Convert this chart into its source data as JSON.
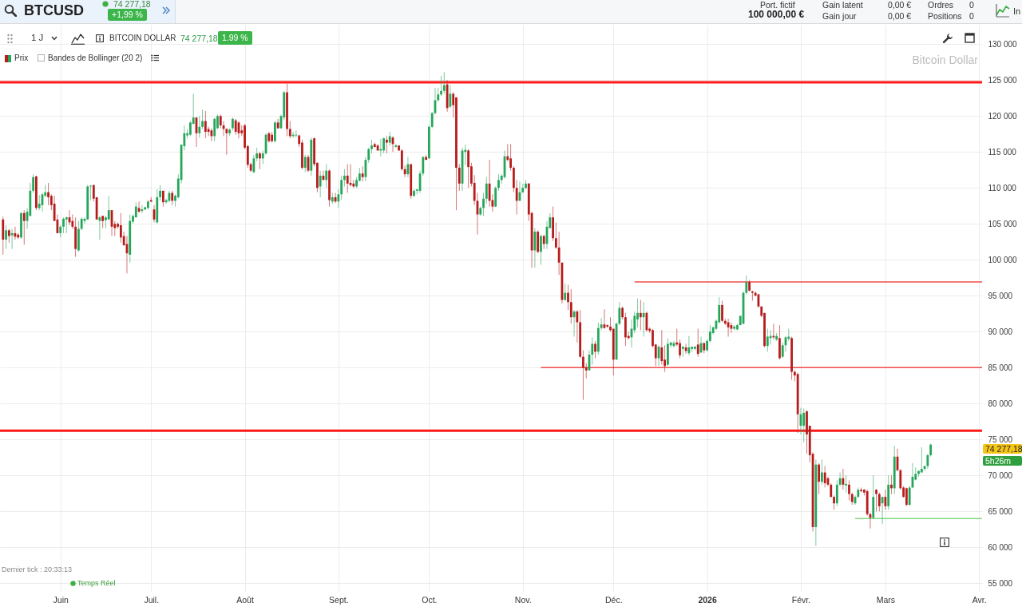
{
  "chart_data": {
    "type": "candlestick",
    "title": "BTCUSD",
    "x": [
      "2025-05-13",
      "2025-05-14",
      "2025-05-15",
      "2025-05-16",
      "2025-05-17",
      "2025-05-18",
      "2025-05-19",
      "2025-05-20",
      "2025-05-21",
      "2025-05-22",
      "2025-05-23",
      "2025-05-24",
      "2025-05-25",
      "2025-05-26",
      "2025-05-27",
      "2025-05-28",
      "2025-05-29",
      "2025-05-30",
      "2025-05-31",
      "2025-06-01",
      "2025-06-02",
      "2025-06-03",
      "2025-06-04",
      "2025-06-05",
      "2025-06-06",
      "2025-06-07",
      "2025-06-08",
      "2025-06-09",
      "2025-06-10",
      "2025-06-11",
      "2025-06-12",
      "2025-06-13",
      "2025-06-14",
      "2025-06-15",
      "2025-06-16",
      "2025-06-17",
      "2025-06-18",
      "2025-06-19",
      "2025-06-20",
      "2025-06-21",
      "2025-06-22",
      "2025-06-23",
      "2025-06-24",
      "2025-06-25",
      "2025-06-26",
      "2025-06-27",
      "2025-06-28",
      "2025-06-29",
      "2025-06-30",
      "2025-07-01",
      "2025-07-02",
      "2025-07-03",
      "2025-07-04",
      "2025-07-05",
      "2025-07-06",
      "2025-07-07",
      "2025-07-08",
      "2025-07-09",
      "2025-07-10",
      "2025-07-11",
      "2025-07-12",
      "2025-07-13",
      "2025-07-14",
      "2025-07-15",
      "2025-07-16",
      "2025-07-17",
      "2025-07-18",
      "2025-07-19",
      "2025-07-20",
      "2025-07-21",
      "2025-07-22",
      "2025-07-23",
      "2025-07-24",
      "2025-07-25",
      "2025-07-26",
      "2025-07-27",
      "2025-07-28",
      "2025-07-29",
      "2025-07-30",
      "2025-07-31",
      "2025-08-01",
      "2025-08-02",
      "2025-08-03",
      "2025-08-04",
      "2025-08-05",
      "2025-08-06",
      "2025-08-07",
      "2025-08-08",
      "2025-08-09",
      "2025-08-10",
      "2025-08-11",
      "2025-08-12",
      "2025-08-13",
      "2025-08-14",
      "2025-08-15",
      "2025-08-16",
      "2025-08-17",
      "2025-08-18",
      "2025-08-19",
      "2025-08-20",
      "2025-08-21",
      "2025-08-22",
      "2025-08-23",
      "2025-08-24",
      "2025-08-25",
      "2025-08-26",
      "2025-08-27",
      "2025-08-28",
      "2025-08-29",
      "2025-08-30",
      "2025-08-31",
      "2025-09-01",
      "2025-09-02",
      "2025-09-03",
      "2025-09-04",
      "2025-09-05",
      "2025-09-06",
      "2025-09-07",
      "2025-09-08",
      "2025-09-09",
      "2025-09-10",
      "2025-09-11",
      "2025-09-12",
      "2025-09-13",
      "2025-09-14",
      "2025-09-15",
      "2025-09-16",
      "2025-09-17",
      "2025-09-18",
      "2025-09-19",
      "2025-09-20",
      "2025-09-21",
      "2025-09-22",
      "2025-09-23",
      "2025-09-24",
      "2025-09-25",
      "2025-09-26",
      "2025-09-27",
      "2025-09-28",
      "2025-09-29",
      "2025-09-30",
      "2025-10-01",
      "2025-10-02",
      "2025-10-03",
      "2025-10-04",
      "2025-10-05",
      "2025-10-06",
      "2025-10-07",
      "2025-10-08",
      "2025-10-09",
      "2025-10-10",
      "2025-10-11",
      "2025-10-12",
      "2025-10-13",
      "2025-10-14",
      "2025-10-15",
      "2025-10-16",
      "2025-10-17",
      "2025-10-18",
      "2025-10-19",
      "2025-10-20",
      "2025-10-21",
      "2025-10-22",
      "2025-10-23",
      "2025-10-24",
      "2025-10-25",
      "2025-10-26",
      "2025-10-27",
      "2025-10-28",
      "2025-10-29",
      "2025-10-30",
      "2025-10-31",
      "2025-11-01",
      "2025-11-02",
      "2025-11-03",
      "2025-11-04",
      "2025-11-05",
      "2025-11-06",
      "2025-11-07",
      "2025-11-08",
      "2025-11-09",
      "2025-11-10",
      "2025-11-11",
      "2025-11-12",
      "2025-11-13",
      "2025-11-14",
      "2025-11-15",
      "2025-11-16",
      "2025-11-17",
      "2025-11-18",
      "2025-11-19",
      "2025-11-20",
      "2025-11-21",
      "2025-11-22",
      "2025-11-23",
      "2025-11-24",
      "2025-11-25",
      "2025-11-26",
      "2025-11-27",
      "2025-11-28",
      "2025-11-29",
      "2025-11-30",
      "2025-12-01",
      "2025-12-02",
      "2025-12-03",
      "2025-12-04",
      "2025-12-05",
      "2025-12-06",
      "2025-12-07",
      "2025-12-08",
      "2025-12-09",
      "2025-12-10",
      "2025-12-11",
      "2025-12-12",
      "2025-12-13",
      "2025-12-14",
      "2025-12-15",
      "2025-12-16",
      "2025-12-17",
      "2025-12-18",
      "2025-12-19",
      "2025-12-20",
      "2025-12-21",
      "2025-12-22",
      "2025-12-23",
      "2025-12-24",
      "2025-12-25",
      "2025-12-26",
      "2025-12-27",
      "2025-12-28",
      "2025-12-29",
      "2025-12-30",
      "2025-12-31",
      "2026-01-01",
      "2026-01-02",
      "2026-01-03",
      "2026-01-04",
      "2026-01-05",
      "2026-01-06",
      "2026-01-07",
      "2026-01-08",
      "2026-01-09",
      "2026-01-10",
      "2026-01-11",
      "2026-01-12",
      "2026-01-13",
      "2026-01-14",
      "2026-01-15",
      "2026-01-16",
      "2026-01-17",
      "2026-01-18",
      "2026-01-19",
      "2026-01-20",
      "2026-01-21",
      "2026-01-22",
      "2026-01-23",
      "2026-01-24",
      "2026-01-25",
      "2026-01-26",
      "2026-01-27",
      "2026-01-28",
      "2026-01-29",
      "2026-01-30",
      "2026-01-31",
      "2026-02-01",
      "2026-02-02",
      "2026-02-03",
      "2026-02-04",
      "2026-02-05",
      "2026-02-06",
      "2026-02-07",
      "2026-02-08",
      "2026-02-09",
      "2026-02-10",
      "2026-02-11",
      "2026-02-12",
      "2026-02-13",
      "2026-02-14",
      "2026-02-15",
      "2026-02-16",
      "2026-02-17",
      "2026-02-18",
      "2026-02-19",
      "2026-02-20",
      "2026-02-21",
      "2026-02-22",
      "2026-02-23",
      "2026-02-24",
      "2026-02-25",
      "2026-02-26",
      "2026-02-27",
      "2026-02-28",
      "2026-03-01",
      "2026-03-02",
      "2026-03-03",
      "2026-03-04",
      "2026-03-05",
      "2026-03-06",
      "2026-03-07",
      "2026-03-08",
      "2026-03-09",
      "2026-03-10",
      "2026-03-11",
      "2026-03-12",
      "2026-03-13",
      "2026-03-14",
      "2026-03-15",
      "2026-03-16"
    ],
    "ohlc": [
      [
        105600,
        106000,
        100700,
        102800
      ],
      [
        102800,
        104800,
        101500,
        104100
      ],
      [
        104100,
        104300,
        102400,
        103300
      ],
      [
        103400,
        104300,
        101500,
        103700
      ],
      [
        103700,
        104600,
        102800,
        103200
      ],
      [
        103500,
        103700,
        102900,
        103100
      ],
      [
        103100,
        106600,
        102900,
        106500
      ],
      [
        106500,
        106900,
        102100,
        105400
      ],
      [
        105400,
        107200,
        104300,
        106700
      ],
      [
        106100,
        110700,
        106100,
        109600
      ],
      [
        109600,
        111900,
        109300,
        111500
      ],
      [
        111600,
        111700,
        106900,
        107200
      ],
      [
        107200,
        109000,
        106900,
        107800
      ],
      [
        107600,
        109300,
        106700,
        109100
      ],
      [
        108900,
        110400,
        108700,
        109400
      ],
      [
        109400,
        110700,
        107600,
        108700
      ],
      [
        108900,
        109100,
        106900,
        107600
      ],
      [
        107800,
        108900,
        105400,
        105400
      ],
      [
        105600,
        106300,
        103700,
        103700
      ],
      [
        103700,
        104800,
        103100,
        104600
      ],
      [
        104600,
        105900,
        103700,
        105700
      ],
      [
        105600,
        106000,
        103700,
        105900
      ],
      [
        105900,
        106900,
        104800,
        105200
      ],
      [
        105400,
        106300,
        104300,
        104600
      ],
      [
        104600,
        105900,
        100400,
        101500
      ],
      [
        101300,
        105400,
        101100,
        104300
      ],
      [
        104300,
        105900,
        104100,
        105700
      ],
      [
        105400,
        105900,
        105000,
        105700
      ],
      [
        105600,
        110400,
        105600,
        110200
      ],
      [
        110200,
        110400,
        108300,
        110300
      ],
      [
        110400,
        110400,
        108100,
        108500
      ],
      [
        108700,
        108700,
        105600,
        105600
      ],
      [
        105400,
        106100,
        102800,
        105900
      ],
      [
        106100,
        106100,
        104400,
        105400
      ],
      [
        105500,
        106100,
        104400,
        105900
      ],
      [
        105600,
        108900,
        105600,
        106900
      ],
      [
        106900,
        106900,
        103300,
        104600
      ],
      [
        105000,
        105400,
        103300,
        104400
      ],
      [
        105000,
        105200,
        104300,
        104600
      ],
      [
        104800,
        106500,
        102400,
        103100
      ],
      [
        103300,
        103900,
        102000,
        102000
      ],
      [
        102200,
        103300,
        98100,
        100900
      ],
      [
        100700,
        106300,
        99600,
        105400
      ],
      [
        105300,
        106300,
        105000,
        106100
      ],
      [
        105900,
        108000,
        105900,
        107400
      ],
      [
        107200,
        108100,
        106500,
        106700
      ],
      [
        106800,
        107600,
        106500,
        107000
      ],
      [
        107000,
        107400,
        106900,
        107300
      ],
      [
        107200,
        108300,
        107000,
        108100
      ],
      [
        108300,
        108700,
        108000,
        108100
      ],
      [
        107000,
        107600,
        105200,
        105600
      ],
      [
        105200,
        109800,
        105000,
        108700
      ],
      [
        108700,
        110400,
        108200,
        109600
      ],
      [
        109600,
        109600,
        107400,
        108000
      ],
      [
        108000,
        108500,
        107800,
        108300
      ],
      [
        108200,
        109600,
        108000,
        109300
      ],
      [
        109300,
        109600,
        107600,
        108200
      ],
      [
        108200,
        109100,
        107400,
        108900
      ],
      [
        108700,
        111900,
        108500,
        111300
      ],
      [
        111100,
        116100,
        110600,
        116000
      ],
      [
        115800,
        118700,
        115200,
        117600
      ],
      [
        117300,
        118200,
        116900,
        117600
      ],
      [
        117400,
        119300,
        117200,
        119100
      ],
      [
        118900,
        123100,
        118900,
        119800
      ],
      [
        119800,
        119800,
        115700,
        117600
      ],
      [
        117600,
        120000,
        117000,
        118500
      ],
      [
        118500,
        120900,
        118200,
        119300
      ],
      [
        119300,
        120700,
        116900,
        117800
      ],
      [
        118200,
        118500,
        117200,
        117800
      ],
      [
        118000,
        118300,
        116500,
        117200
      ],
      [
        117200,
        119800,
        116500,
        119600
      ],
      [
        118300,
        120200,
        118200,
        120000
      ],
      [
        120000,
        120200,
        118300,
        118700
      ],
      [
        118700,
        119300,
        117200,
        118200
      ],
      [
        118200,
        118300,
        114600,
        117600
      ],
      [
        117600,
        118300,
        117200,
        118100
      ],
      [
        118300,
        119800,
        118000,
        119600
      ],
      [
        119400,
        119600,
        117400,
        117800
      ],
      [
        119100,
        119300,
        116900,
        117600
      ],
      [
        118000,
        118700,
        117200,
        117600
      ],
      [
        118700,
        118900,
        115400,
        115600
      ],
      [
        115800,
        116000,
        112800,
        113200
      ],
      [
        113300,
        113500,
        112200,
        112400
      ],
      [
        112200,
        114600,
        112000,
        114100
      ],
      [
        114100,
        115600,
        113700,
        114800
      ],
      [
        114800,
        115000,
        112600,
        114100
      ],
      [
        114100,
        115200,
        113300,
        114800
      ],
      [
        114800,
        117600,
        114600,
        117400
      ],
      [
        117600,
        117800,
        116300,
        116500
      ],
      [
        117400,
        117800,
        116300,
        116500
      ],
      [
        116500,
        119300,
        116300,
        119100
      ],
      [
        119100,
        119600,
        118200,
        118300
      ],
      [
        118300,
        120200,
        118200,
        120000
      ],
      [
        119800,
        123500,
        119400,
        123300
      ],
      [
        123300,
        124500,
        117200,
        118200
      ],
      [
        118200,
        119300,
        116900,
        117200
      ],
      [
        117200,
        117800,
        117000,
        117400
      ],
      [
        117300,
        118000,
        117000,
        117400
      ],
      [
        117300,
        117400,
        115700,
        116100
      ],
      [
        116300,
        116700,
        112600,
        112800
      ],
      [
        112800,
        114600,
        112200,
        114300
      ],
      [
        114300,
        114600,
        112200,
        112400
      ],
      [
        112400,
        117000,
        111700,
        116700
      ],
      [
        116900,
        117000,
        113000,
        113300
      ],
      [
        113500,
        113500,
        109400,
        110000
      ],
      [
        110200,
        112400,
        108700,
        111700
      ],
      [
        111700,
        112400,
        111100,
        111100
      ],
      [
        111100,
        113300,
        110000,
        112400
      ],
      [
        112400,
        112600,
        107400,
        108300
      ],
      [
        108100,
        109300,
        107800,
        108700
      ],
      [
        108700,
        109300,
        107900,
        108100
      ],
      [
        108100,
        109800,
        107200,
        109100
      ],
      [
        109100,
        111700,
        108300,
        111100
      ],
      [
        111100,
        112600,
        110200,
        111700
      ],
      [
        111700,
        113300,
        109300,
        110600
      ],
      [
        110700,
        113300,
        110200,
        110400
      ],
      [
        110600,
        111100,
        110000,
        110200
      ],
      [
        110200,
        111500,
        110000,
        111100
      ],
      [
        111000,
        112800,
        110900,
        112000
      ],
      [
        112000,
        113000,
        110900,
        111500
      ],
      [
        111500,
        114300,
        110900,
        113900
      ],
      [
        113900,
        115600,
        113500,
        115400
      ],
      [
        115400,
        116700,
        114800,
        115900
      ],
      [
        116100,
        116300,
        115600,
        115700
      ],
      [
        115900,
        116100,
        115200,
        115200
      ],
      [
        115200,
        116800,
        114400,
        115400
      ],
      [
        115200,
        117000,
        114800,
        116900
      ],
      [
        116700,
        117200,
        114800,
        116300
      ],
      [
        116300,
        117800,
        115900,
        117200
      ],
      [
        117000,
        117200,
        115000,
        116100
      ],
      [
        115700,
        116100,
        115600,
        115900
      ],
      [
        115900,
        115900,
        115200,
        115200
      ],
      [
        115200,
        115400,
        112400,
        112600
      ],
      [
        112600,
        113100,
        111500,
        111900
      ],
      [
        111900,
        114300,
        111500,
        113300
      ],
      [
        113300,
        113300,
        108500,
        108900
      ],
      [
        108900,
        109800,
        108700,
        109600
      ],
      [
        109600,
        109800,
        109100,
        109800
      ],
      [
        109600,
        112400,
        109300,
        112000
      ],
      [
        112000,
        114400,
        111700,
        114300
      ],
      [
        114300,
        114600,
        113900,
        113900
      ],
      [
        114100,
        118700,
        114100,
        118500
      ],
      [
        118500,
        120600,
        118300,
        120400
      ],
      [
        120400,
        123900,
        120200,
        122200
      ],
      [
        122200,
        123900,
        122000,
        123000
      ],
      [
        123000,
        125600,
        122800,
        123500
      ],
      [
        123500,
        126100,
        123100,
        124300
      ],
      [
        124400,
        125000,
        120600,
        121100
      ],
      [
        121300,
        124300,
        121100,
        123100
      ],
      [
        123100,
        123300,
        119800,
        121500
      ],
      [
        122600,
        122600,
        106900,
        112800
      ],
      [
        112800,
        113300,
        109600,
        110600
      ],
      [
        110600,
        115600,
        109600,
        115200
      ],
      [
        115000,
        116000,
        113200,
        115300
      ],
      [
        115200,
        115400,
        110000,
        112900
      ],
      [
        113000,
        113500,
        110200,
        110600
      ],
      [
        110700,
        111800,
        107600,
        108200
      ],
      [
        108200,
        109300,
        103500,
        106300
      ],
      [
        106300,
        107400,
        106100,
        107200
      ],
      [
        107200,
        109300,
        106100,
        108500
      ],
      [
        108500,
        111500,
        107800,
        110600
      ],
      [
        110600,
        113900,
        107400,
        108200
      ],
      [
        108300,
        109100,
        106700,
        107400
      ],
      [
        107400,
        110200,
        107400,
        110000
      ],
      [
        110000,
        111900,
        109600,
        111100
      ],
      [
        111100,
        111900,
        110600,
        111700
      ],
      [
        111500,
        115200,
        111300,
        114400
      ],
      [
        114400,
        116100,
        113700,
        113900
      ],
      [
        114100,
        116100,
        112400,
        112800
      ],
      [
        112800,
        113000,
        109400,
        110000
      ],
      [
        110000,
        111100,
        106300,
        108200
      ],
      [
        108200,
        110900,
        108200,
        109400
      ],
      [
        109400,
        110600,
        109300,
        110000
      ],
      [
        110000,
        111100,
        109800,
        110600
      ],
      [
        110600,
        110700,
        105400,
        106300
      ],
      [
        106500,
        106700,
        98900,
        101300
      ],
      [
        101300,
        104400,
        98900,
        103900
      ],
      [
        103900,
        104100,
        100900,
        101100
      ],
      [
        101100,
        103500,
        99300,
        103300
      ],
      [
        103300,
        103500,
        101500,
        102200
      ],
      [
        102200,
        105400,
        101500,
        104600
      ],
      [
        104400,
        106500,
        104400,
        105900
      ],
      [
        105900,
        107400,
        102600,
        103000
      ],
      [
        103000,
        105200,
        101500,
        101700
      ],
      [
        101700,
        103900,
        97900,
        99600
      ],
      [
        99600,
        99600,
        93900,
        94400
      ],
      [
        94400,
        96700,
        94300,
        95400
      ],
      [
        95400,
        96500,
        93000,
        94100
      ],
      [
        94100,
        95900,
        91100,
        92000
      ],
      [
        92000,
        93000,
        89300,
        92800
      ],
      [
        92800,
        93000,
        88500,
        91300
      ],
      [
        91300,
        93000,
        86300,
        86500
      ],
      [
        86500,
        87400,
        80500,
        85000
      ],
      [
        85000,
        85600,
        83500,
        84600
      ],
      [
        84600,
        87400,
        84600,
        86800
      ],
      [
        86800,
        89200,
        85400,
        88300
      ],
      [
        88300,
        88700,
        86300,
        87200
      ],
      [
        87200,
        91300,
        86800,
        90500
      ],
      [
        90500,
        91900,
        90200,
        91000
      ],
      [
        91000,
        93100,
        90400,
        90500
      ],
      [
        90900,
        91000,
        90500,
        90700
      ],
      [
        90700,
        92000,
        90000,
        90200
      ],
      [
        90400,
        90400,
        83900,
        86100
      ],
      [
        86100,
        91300,
        86100,
        91100
      ],
      [
        91100,
        94100,
        90900,
        93300
      ],
      [
        93300,
        93500,
        91700,
        92000
      ],
      [
        92000,
        92600,
        88000,
        89200
      ],
      [
        89400,
        90000,
        88900,
        89100
      ],
      [
        89200,
        91700,
        87800,
        90400
      ],
      [
        90200,
        92800,
        89800,
        92200
      ],
      [
        91700,
        94600,
        90600,
        92600
      ],
      [
        92600,
        94400,
        90200,
        92000
      ],
      [
        92000,
        94100,
        89300,
        92600
      ],
      [
        92600,
        92800,
        90000,
        90200
      ],
      [
        90400,
        90600,
        89800,
        90100
      ],
      [
        90200,
        90400,
        87800,
        88000
      ],
      [
        88200,
        88300,
        85200,
        86300
      ],
      [
        86300,
        88100,
        85200,
        87900
      ],
      [
        87800,
        90200,
        85400,
        85900
      ],
      [
        86100,
        88100,
        84400,
        85200
      ],
      [
        85400,
        89100,
        85200,
        88300
      ],
      [
        88100,
        88500,
        87800,
        88500
      ],
      [
        88000,
        88700,
        87800,
        88400
      ],
      [
        88500,
        90400,
        88000,
        88200
      ],
      [
        88400,
        88900,
        86300,
        86700
      ],
      [
        87600,
        88000,
        86500,
        87900
      ],
      [
        87800,
        88300,
        86900,
        87300
      ],
      [
        87000,
        89400,
        86700,
        87800
      ],
      [
        87600,
        87900,
        87200,
        87900
      ],
      [
        87600,
        88000,
        87400,
        87900
      ],
      [
        88200,
        90400,
        86500,
        86900
      ],
      [
        87100,
        89300,
        87000,
        88400
      ],
      [
        88400,
        88500,
        87000,
        87400
      ],
      [
        87400,
        88900,
        87200,
        88700
      ],
      [
        88700,
        90900,
        88500,
        90000
      ],
      [
        89800,
        90700,
        89600,
        90600
      ],
      [
        90400,
        91700,
        90200,
        91500
      ],
      [
        91300,
        94800,
        91100,
        93700
      ],
      [
        93700,
        94300,
        91300,
        91500
      ],
      [
        91500,
        91800,
        90900,
        91100
      ],
      [
        91300,
        91800,
        89300,
        90600
      ],
      [
        90900,
        91300,
        89800,
        90400
      ],
      [
        90400,
        90900,
        90200,
        90700
      ],
      [
        90300,
        91100,
        90200,
        90900
      ],
      [
        90900,
        92200,
        90900,
        92200
      ],
      [
        91100,
        95600,
        91000,
        95400
      ],
      [
        95400,
        97800,
        95200,
        96900
      ],
      [
        96900,
        97200,
        95600,
        95700
      ],
      [
        95600,
        95700,
        94300,
        95400
      ],
      [
        95400,
        95600,
        94900,
        95000
      ],
      [
        95200,
        95200,
        93300,
        93500
      ],
      [
        93500,
        93500,
        92000,
        92200
      ],
      [
        92600,
        92600,
        87800,
        88000
      ],
      [
        88000,
        90400,
        87200,
        89300
      ],
      [
        89100,
        90200,
        88200,
        89400
      ],
      [
        89400,
        91100,
        88900,
        89200
      ],
      [
        88900,
        89800,
        88700,
        89400
      ],
      [
        89100,
        90900,
        86100,
        86300
      ],
      [
        86500,
        88500,
        86300,
        88100
      ],
      [
        88100,
        89400,
        87200,
        89200
      ],
      [
        89000,
        90400,
        88700,
        89300
      ],
      [
        89100,
        89300,
        83300,
        84400
      ],
      [
        84400,
        84600,
        83100,
        83900
      ],
      [
        84100,
        84300,
        75900,
        78500
      ],
      [
        76900,
        79400,
        75700,
        78500
      ],
      [
        76900,
        79300,
        74600,
        78700
      ],
      [
        78900,
        79100,
        73000,
        75700
      ],
      [
        76900,
        76900,
        71800,
        72800
      ],
      [
        73000,
        73200,
        62200,
        62800
      ],
      [
        62800,
        72200,
        60200,
        71500
      ],
      [
        71500,
        71700,
        67400,
        69100
      ],
      [
        69100,
        72200,
        68700,
        70400
      ],
      [
        70400,
        71300,
        68300,
        68900
      ],
      [
        69600,
        69800,
        68500,
        68700
      ],
      [
        68700,
        68900,
        66900,
        67000
      ],
      [
        67000,
        67200,
        65200,
        66100
      ],
      [
        66100,
        69300,
        65700,
        68700
      ],
      [
        68700,
        70400,
        68500,
        69600
      ],
      [
        69600,
        70900,
        68000,
        68700
      ],
      [
        68600,
        70000,
        67600,
        68800
      ],
      [
        68700,
        69300,
        66500,
        67400
      ],
      [
        67400,
        67600,
        65900,
        66300
      ],
      [
        66100,
        67200,
        65900,
        67000
      ],
      [
        67000,
        68300,
        66900,
        68000
      ],
      [
        68000,
        68300,
        67600,
        67800
      ],
      [
        68000,
        68100,
        67200,
        67600
      ],
      [
        67800,
        68000,
        64400,
        64600
      ],
      [
        64600,
        64800,
        62600,
        64100
      ],
      [
        64100,
        70000,
        63900,
        67000
      ],
      [
        68000,
        68100,
        65000,
        67400
      ],
      [
        67400,
        67600,
        65000,
        65700
      ],
      [
        66100,
        67000,
        63200,
        67000
      ],
      [
        67000,
        68000,
        65200,
        65700
      ],
      [
        65700,
        70000,
        65200,
        68700
      ],
      [
        68700,
        70000,
        67400,
        68200
      ],
      [
        68200,
        74100,
        67400,
        72600
      ],
      [
        72600,
        73700,
        70600,
        70700
      ],
      [
        70700,
        70900,
        68000,
        68200
      ],
      [
        68300,
        68500,
        66900,
        67000
      ],
      [
        68200,
        68300,
        65700,
        65900
      ],
      [
        65900,
        68500,
        65700,
        68300
      ],
      [
        68300,
        71700,
        68200,
        69800
      ],
      [
        69400,
        71100,
        69300,
        70200
      ],
      [
        70200,
        70700,
        69800,
        70600
      ],
      [
        70400,
        73900,
        70400,
        70900
      ],
      [
        70900,
        71300,
        70600,
        71300
      ],
      [
        71300,
        73000,
        70900,
        72800
      ],
      [
        72800,
        74400,
        72600,
        74277.18
      ]
    ],
    "colors": [
      "#b71c1c",
      "#26a65b",
      "#b71c1c",
      "#26a65b",
      "#b71c1c",
      "#b71c1c",
      "#26a65b",
      "#b71c1c",
      "#26a65b",
      "#26a65b",
      "#26a65b",
      "#b71c1c",
      "#26a65b",
      "#26a65b",
      "#26a65b",
      "#b71c1c",
      "#b71c1c",
      "#b71c1c",
      "#b71c1c",
      "#26a65b",
      "#26a65b",
      "#26a65b",
      "#b71c1c",
      "#b71c1c",
      "#b71c1c",
      "#26a65b",
      "#26a65b",
      "#26a65b",
      "#26a65b",
      "#26a65b",
      "#b71c1c",
      "#b71c1c",
      "#26a65b",
      "#b71c1c",
      "#26a65b",
      "#26a65b",
      "#b71c1c",
      "#b71c1c",
      "#b71c1c",
      "#b71c1c",
      "#b71c1c",
      "#b71c1c",
      "#26a65b",
      "#26a65b",
      "#26a65b",
      "#b71c1c",
      "#26a65b",
      "#26a65b",
      "#26a65b",
      "#b71c1c",
      "#b71c1c",
      "#26a65b",
      "#26a65b",
      "#b71c1c",
      "#26a65b",
      "#26a65b",
      "#b71c1c",
      "#26a65b",
      "#26a65b",
      "#26a65b",
      "#26a65b",
      "#26a65b",
      "#26a65b",
      "#26a65b",
      "#b71c1c",
      "#26a65b",
      "#26a65b",
      "#b71c1c",
      "#b71c1c",
      "#b71c1c",
      "#26a65b",
      "#26a65b",
      "#b71c1c",
      "#b71c1c",
      "#b71c1c",
      "#26a65b",
      "#26a65b",
      "#b71c1c",
      "#b71c1c",
      "#b71c1c",
      "#b71c1c",
      "#b71c1c",
      "#b71c1c",
      "#26a65b",
      "#26a65b",
      "#b71c1c",
      "#26a65b",
      "#26a65b",
      "#b71c1c",
      "#b71c1c",
      "#26a65b",
      "#b71c1c",
      "#26a65b",
      "#26a65b",
      "#b71c1c",
      "#b71c1c",
      "#26a65b",
      "#26a65b",
      "#b71c1c",
      "#b71c1c",
      "#26a65b",
      "#b71c1c",
      "#26a65b",
      "#b71c1c",
      "#b71c1c",
      "#26a65b",
      "#b71c1c",
      "#26a65b",
      "#b71c1c",
      "#26a65b",
      "#b71c1c",
      "#26a65b",
      "#26a65b",
      "#26a65b",
      "#b71c1c",
      "#b71c1c",
      "#b71c1c",
      "#26a65b",
      "#26a65b",
      "#b71c1c",
      "#26a65b",
      "#26a65b",
      "#26a65b",
      "#b71c1c",
      "#b71c1c",
      "#26a65b",
      "#26a65b",
      "#b71c1c",
      "#26a65b",
      "#b71c1c",
      "#26a65b",
      "#b71c1c",
      "#b71c1c",
      "#b71c1c",
      "#26a65b",
      "#b71c1c",
      "#26a65b",
      "#26a65b",
      "#26a65b",
      "#26a65b",
      "#b71c1c",
      "#26a65b",
      "#26a65b",
      "#26a65b",
      "#26a65b",
      "#26a65b",
      "#26a65b",
      "#b71c1c",
      "#26a65b",
      "#b71c1c",
      "#b71c1c",
      "#b71c1c",
      "#26a65b",
      "#26a65b",
      "#b71c1c",
      "#b71c1c",
      "#b71c1c",
      "#b71c1c",
      "#26a65b",
      "#26a65b",
      "#26a65b",
      "#b71c1c",
      "#b71c1c",
      "#26a65b",
      "#26a65b",
      "#26a65b",
      "#26a65b",
      "#b71c1c",
      "#b71c1c",
      "#b71c1c",
      "#b71c1c",
      "#26a65b",
      "#26a65b",
      "#26a65b",
      "#b71c1c",
      "#b71c1c",
      "#26a65b",
      "#b71c1c",
      "#26a65b",
      "#b71c1c",
      "#26a65b",
      "#26a65b",
      "#b71c1c",
      "#b71c1c",
      "#b71c1c",
      "#b71c1c",
      "#26a65b",
      "#b71c1c",
      "#b71c1c",
      "#26a65b",
      "#b71c1c",
      "#b71c1c",
      "#b71c1c",
      "#b71c1c",
      "#26a65b",
      "#26a65b",
      "#b71c1c",
      "#26a65b",
      "#26a65b",
      "#b71c1c",
      "#b71c1c",
      "#b71c1c",
      "#b71c1c",
      "#26a65b",
      "#26a65b",
      "#b71c1c",
      "#b71c1c",
      "#b71c1c",
      "#26a65b",
      "#26a65b",
      "#26a65b",
      "#b71c1c",
      "#26a65b",
      "#b71c1c",
      "#b71c1c",
      "#b71c1c",
      "#b71c1c",
      "#26a65b",
      "#b71c1c",
      "#b71c1c",
      "#26a65b",
      "#26a65b",
      "#26a65b",
      "#b71c1c",
      "#b71c1c",
      "#26a65b",
      "#b71c1c",
      "#26a65b",
      "#26a65b",
      "#26a65b",
      "#b71c1c",
      "#26a65b",
      "#b71c1c",
      "#26a65b",
      "#26a65b",
      "#26a65b",
      "#26a65b",
      "#26a65b",
      "#b71c1c",
      "#b71c1c",
      "#b71c1c",
      "#b71c1c",
      "#26a65b",
      "#26a65b",
      "#26a65b",
      "#26a65b",
      "#26a65b",
      "#b71c1c",
      "#b71c1c",
      "#b71c1c",
      "#b71c1c",
      "#b71c1c",
      "#b71c1c",
      "#26a65b",
      "#26a65b",
      "#b71c1c",
      "#26a65b",
      "#b71c1c",
      "#26a65b",
      "#26a65b",
      "#26a65b",
      "#b71c1c",
      "#b71c1c",
      "#b71c1c",
      "#26a65b",
      "#26a65b",
      "#b71c1c",
      "#b71c1c",
      "#b71c1c",
      "#26a65b",
      "#b71c1c",
      "#26a65b",
      "#b71c1c",
      "#b71c1c",
      "#b71c1c",
      "#b71c1c",
      "#26a65b",
      "#26a65b",
      "#b71c1c",
      "#26a65b",
      "#b71c1c",
      "#b71c1c",
      "#26a65b",
      "#26a65b",
      "#b71c1c",
      "#b71c1c",
      "#b71c1c",
      "#b71c1c",
      "#26a65b",
      "#b71c1c",
      "#b71c1c",
      "#26a65b",
      "#b71c1c",
      "#26a65b",
      "#b71c1c",
      "#26a65b",
      "#b71c1c",
      "#b71c1c",
      "#b71c1c",
      "#b71c1c",
      "#26a65b",
      "#26a65b",
      "#26a65b",
      "#26a65b",
      "#26a65b",
      "#26a65b",
      "#26a65b",
      "#26a65b"
    ],
    "series": [
      {
        "type": "line",
        "x": [
          "2025-12-08",
          "2026-04-02"
        ],
        "values": [
          96900,
          96900
        ],
        "color": "#f04a4a"
      },
      {
        "type": "line",
        "x": [
          "2025-11-07",
          "2026-04-02"
        ],
        "values": [
          85000,
          85000
        ],
        "color": "#f04a4a"
      },
      {
        "type": "line",
        "x": [
          "2026-02-19",
          "2026-04-02"
        ],
        "values": [
          64000,
          64000
        ],
        "color": "#84d884"
      }
    ],
    "ref_lines": [
      {
        "axis": "y",
        "value": 124700,
        "color": "#ff1a1a"
      },
      {
        "axis": "y",
        "value": 76200,
        "color": "#ff1a1a"
      }
    ],
    "xlim": [
      "2025-05-12",
      "2026-04-02"
    ],
    "xticks": [
      {
        "value": "2025-06-01",
        "label": "Juin"
      },
      {
        "value": "2025-07-01",
        "label": "Juil."
      },
      {
        "value": "2025-08-01",
        "label": "Août"
      },
      {
        "value": "2025-09-01",
        "label": "Sept."
      },
      {
        "value": "2025-10-01",
        "label": "Oct."
      },
      {
        "value": "2025-11-01",
        "label": "Nov."
      },
      {
        "value": "2025-12-01",
        "label": "Déc."
      },
      {
        "value": "2026-01-01",
        "label": "2026"
      },
      {
        "value": "2026-02-01",
        "label": "Févr."
      },
      {
        "value": "2026-03-01",
        "label": "Mars"
      },
      {
        "value": "2026-04-01",
        "label": "Avr."
      }
    ],
    "ylim": [
      53900,
      132700
    ],
    "yticks": [
      {
        "value": 55000,
        "label": "55 000"
      },
      {
        "value": 60000,
        "label": "60 000"
      },
      {
        "value": 65000,
        "label": "65 000"
      },
      {
        "value": 70000,
        "label": "70 000"
      },
      {
        "value": 75000,
        "label": "75 000"
      },
      {
        "value": 80000,
        "label": "80 000"
      },
      {
        "value": 85000,
        "label": "85 000"
      },
      {
        "value": 90000,
        "label": "90 000"
      },
      {
        "value": 95000,
        "label": "95 000"
      },
      {
        "value": 100000,
        "label": "100 000"
      },
      {
        "value": 105000,
        "label": "105 000"
      },
      {
        "value": 110000,
        "label": "110 000"
      },
      {
        "value": 115000,
        "label": "115 000"
      },
      {
        "value": 120000,
        "label": "120 000"
      },
      {
        "value": 125000,
        "label": "125 000"
      },
      {
        "value": 130000,
        "label": "130 000"
      }
    ],
    "grid": true,
    "annotations": [
      "74 277,18",
      "+1,99 %",
      "Port. fictif",
      "100 000,00 €",
      "Gain latent",
      "Gain jour",
      "0,00 €",
      "0,00 €",
      "Ordres",
      "Positions",
      "0",
      "0",
      "In",
      "1 J",
      "BITCOIN DOLLAR",
      "74 277,18",
      "1.99 %",
      "Prix",
      "Bandes de Bollinger (20 2)",
      "Bitcoin Dollar",
      "Dernier tick : 20:33:13",
      "Temps Réel",
      "74 277,18",
      "5h26m"
    ]
  }
}
